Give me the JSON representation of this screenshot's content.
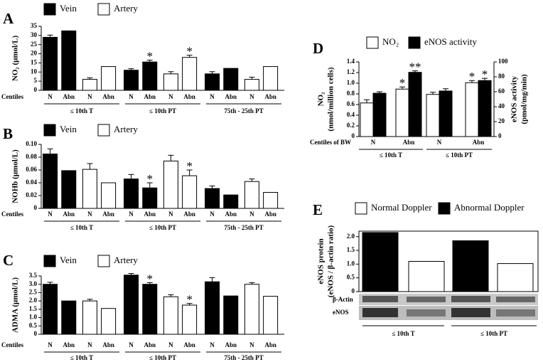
{
  "chart_data": [
    {
      "type": "bar",
      "panel": "A",
      "ylabel": "NO₂ (μmol/L)",
      "row_label": "Centiles",
      "categories": [
        "N",
        "Abn",
        "N",
        "Abn",
        "N",
        "Abn",
        "N",
        "Abn",
        "N",
        "Abn",
        "N",
        "Abn"
      ],
      "groups": [
        "≤ 10th T",
        "≤ 10th PT",
        "75th - 25th PT"
      ],
      "series": [
        {
          "name": "Vein",
          "color": "#000000",
          "values": [
            29,
            32.5,
            null,
            null,
            11,
            15.5,
            null,
            null,
            9,
            12,
            null,
            null
          ],
          "errors": [
            1.2,
            null,
            null,
            null,
            0.8,
            1,
            null,
            null,
            1.2,
            null,
            null,
            null
          ],
          "stars": [
            null,
            null,
            null,
            null,
            null,
            "*",
            null,
            null,
            null,
            null,
            null,
            null
          ]
        },
        {
          "name": "Artery",
          "color": "#ffffff",
          "values": [
            null,
            null,
            6,
            13,
            null,
            null,
            9,
            18,
            null,
            null,
            6,
            13
          ],
          "errors": [
            null,
            null,
            0.8,
            null,
            null,
            null,
            1.2,
            1.2,
            null,
            null,
            1.2,
            null
          ],
          "stars": [
            null,
            null,
            null,
            null,
            null,
            null,
            null,
            "*",
            null,
            null,
            null,
            null
          ]
        }
      ],
      "ylim": [
        0,
        35
      ],
      "yticks": [
        0,
        5,
        10,
        15,
        20,
        25,
        30,
        35
      ]
    },
    {
      "type": "bar",
      "panel": "B",
      "ylabel": "NOHb (μmol/L)",
      "row_label": "Centiles",
      "categories": [
        "N",
        "Abn",
        "N",
        "Abn",
        "N",
        "Abn",
        "N",
        "Abn",
        "N",
        "Abn",
        "N",
        "Abn"
      ],
      "groups": [
        "≤ 10th T",
        "≤ 10th PT",
        "75th - 25th PT"
      ],
      "series": [
        {
          "name": "Vein",
          "color": "#000000",
          "values": [
            0.085,
            0.059,
            null,
            null,
            0.046,
            0.032,
            null,
            null,
            0.031,
            0.021,
            null,
            null
          ],
          "errors": [
            0.008,
            null,
            null,
            null,
            0.007,
            0.008,
            null,
            null,
            0.004,
            null,
            null,
            null
          ],
          "stars": [
            null,
            null,
            null,
            null,
            null,
            "*",
            null,
            null,
            null,
            null,
            null,
            null
          ]
        },
        {
          "name": "Artery",
          "color": "#ffffff",
          "values": [
            null,
            null,
            0.061,
            0.04,
            null,
            null,
            0.074,
            0.051,
            null,
            null,
            0.042,
            0.025
          ],
          "errors": [
            null,
            null,
            0.009,
            null,
            null,
            null,
            0.009,
            0.009,
            null,
            null,
            0.004,
            null
          ],
          "stars": [
            null,
            null,
            null,
            null,
            null,
            null,
            null,
            "*",
            null,
            null,
            null,
            null
          ]
        }
      ],
      "ylim": [
        0,
        0.1
      ],
      "yticks": [
        0,
        0.02,
        0.04,
        0.06,
        0.08,
        {
          "value": 0.1,
          "label": "0.10"
        }
      ]
    },
    {
      "type": "bar",
      "panel": "C",
      "ylabel": "ADMA (μmol/L)",
      "row_label": "Centiles",
      "categories": [
        "N",
        "Abn",
        "N",
        "Abn",
        "N",
        "Abn",
        "N",
        "Abn",
        "N",
        "Abn",
        "N",
        "Abn"
      ],
      "groups": [
        "≤ 10th T",
        "≤ 10th PT",
        "75th - 25th PT"
      ],
      "series": [
        {
          "name": "Vein",
          "color": "#000000",
          "values": [
            3.0,
            2.0,
            null,
            null,
            3.55,
            3.0,
            null,
            null,
            3.15,
            2.3,
            null,
            null
          ],
          "errors": [
            0.12,
            null,
            null,
            null,
            0.1,
            0.1,
            null,
            null,
            0.25,
            null,
            null,
            null
          ],
          "stars": [
            null,
            null,
            null,
            null,
            null,
            "*",
            null,
            null,
            null,
            null,
            null,
            null
          ]
        },
        {
          "name": "Artery",
          "color": "#ffffff",
          "values": [
            null,
            null,
            2.0,
            1.55,
            null,
            null,
            2.25,
            1.75,
            null,
            null,
            3.0,
            2.28
          ],
          "errors": [
            null,
            null,
            0.1,
            null,
            null,
            null,
            0.12,
            0.1,
            null,
            null,
            0.1,
            null
          ],
          "stars": [
            null,
            null,
            null,
            null,
            null,
            null,
            null,
            "*",
            null,
            null,
            null,
            null
          ]
        }
      ],
      "ylim": [
        0,
        3.5
      ],
      "yticks": [
        0,
        0.5,
        {
          "value": 1,
          "label": "1.0"
        },
        1.5,
        {
          "value": 2,
          "label": "2.0"
        },
        2.5,
        {
          "value": 3,
          "label": "3.0"
        },
        3.5
      ]
    },
    {
      "type": "bar",
      "panel": "D",
      "ylabel": [
        "NO₂",
        "(nmol/million cells)"
      ],
      "y2label": [
        "eNOS  activity",
        "(pmol/mg/min)"
      ],
      "row_label": "Centiles of BW",
      "categories": [
        "N",
        "Abn",
        "N",
        "Abn"
      ],
      "groups": [
        "≤ 10th  T",
        "≤ 10th PT"
      ],
      "series": [
        {
          "name": "NO₂",
          "color": "#ffffff",
          "values": [
            0.63,
            0.89,
            0.79,
            1.01
          ],
          "errors": [
            0.06,
            0.04,
            0.04,
            0.04
          ],
          "stars": [
            null,
            "*",
            null,
            "*"
          ]
        },
        {
          "name": "eNOS activity",
          "color": "#000000",
          "axis": "y2",
          "values": [
            58,
            86,
            61,
            75
          ],
          "errors": [
            2,
            2,
            3,
            3
          ],
          "stars": [
            null,
            "**",
            null,
            "*"
          ]
        }
      ],
      "ylim": [
        0,
        1.4
      ],
      "yticks": [
        0,
        0.2,
        0.4,
        0.6,
        0.8,
        {
          "value": 1,
          "label": "1.0"
        },
        1.2,
        1.4
      ],
      "y2lim": [
        0,
        100
      ],
      "y2ticks": [
        0,
        20,
        40,
        60,
        80,
        100
      ]
    },
    {
      "type": "bar",
      "panel": "E",
      "ylabel": [
        "eNOS protein",
        "(eNOS / β-actin ratio)"
      ],
      "groups": [
        "≤ 10th  T",
        "≤ 10th PT"
      ],
      "series": [
        {
          "name": "Normal Doppler",
          "color": "#ffffff",
          "values": [
            1.1,
            1.02
          ]
        },
        {
          "name": "Abnormal Doppler",
          "color": "#000000",
          "values": [
            2.15,
            1.85
          ]
        }
      ],
      "blot_labels": [
        "β-Actin",
        "eNOS"
      ],
      "ylim": [
        0,
        2.2
      ],
      "yticks": [
        0,
        0.5,
        {
          "value": 1,
          "label": "1.0"
        },
        1.5,
        {
          "value": 2,
          "label": "2.0"
        }
      ]
    }
  ]
}
